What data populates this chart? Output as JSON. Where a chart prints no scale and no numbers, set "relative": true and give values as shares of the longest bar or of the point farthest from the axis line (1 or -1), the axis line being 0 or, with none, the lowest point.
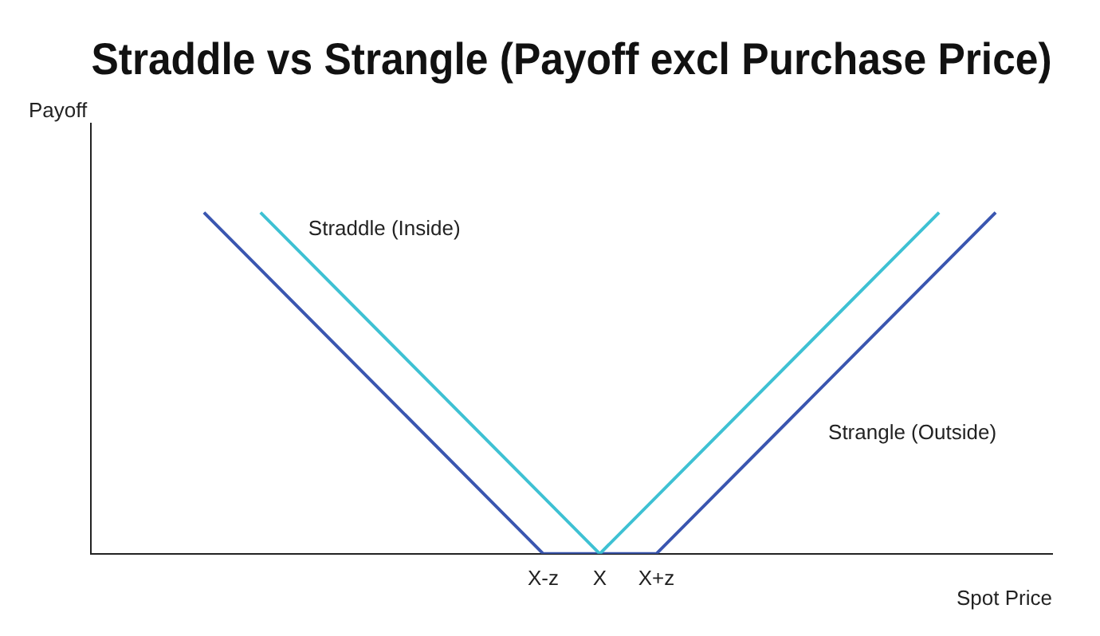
{
  "chart_data": {
    "type": "line",
    "title": "Straddle vs Strangle (Payoff excl Purchase Price)",
    "xlabel": "Spot Price",
    "ylabel": "Payoff",
    "categories": [
      null,
      null,
      null,
      null,
      null,
      null,
      null,
      null,
      "X-z",
      "X",
      "X+z",
      null,
      null,
      null,
      null,
      null,
      null,
      null
    ],
    "relative": true,
    "grid": false,
    "legend": false,
    "marker": "none",
    "line_style": "solid",
    "series": [
      {
        "name": "Straddle (Inside)",
        "color": "#3ec1d3",
        "values": [
          null,
          null,
          null,
          1,
          null,
          null,
          null,
          null,
          null,
          0,
          null,
          null,
          null,
          null,
          null,
          1,
          null,
          null
        ]
      },
      {
        "name": "Strangle (Outside)",
        "color": "#3a56b0",
        "values": [
          null,
          null,
          1,
          null,
          null,
          null,
          null,
          null,
          0,
          null,
          0,
          null,
          null,
          null,
          null,
          null,
          1,
          null
        ]
      }
    ]
  }
}
